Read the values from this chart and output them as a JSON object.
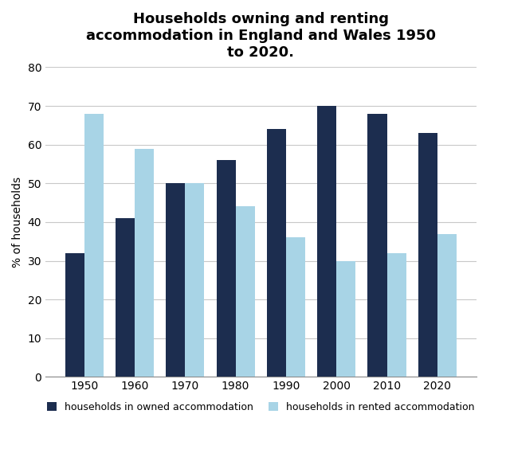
{
  "title": "Households owning and renting\naccommodation in England and Wales 1950\nto 2020.",
  "years": [
    1950,
    1960,
    1970,
    1980,
    1990,
    2000,
    2010,
    2020
  ],
  "owned": [
    32,
    41,
    50,
    56,
    64,
    70,
    68,
    63
  ],
  "rented": [
    68,
    59,
    50,
    44,
    36,
    30,
    32,
    37
  ],
  "owned_color": "#1c2d4f",
  "rented_color": "#a8d4e6",
  "ylabel": "% of households",
  "ylim": [
    0,
    80
  ],
  "yticks": [
    0,
    10,
    20,
    30,
    40,
    50,
    60,
    70,
    80
  ],
  "legend_owned": "households in owned accommodation",
  "legend_rented": "households in rented accommodation",
  "bar_width": 0.38,
  "title_fontsize": 13,
  "axis_fontsize": 10,
  "legend_fontsize": 9,
  "tick_fontsize": 10,
  "background_color": "#ffffff",
  "grid_color": "#c8c8c8"
}
